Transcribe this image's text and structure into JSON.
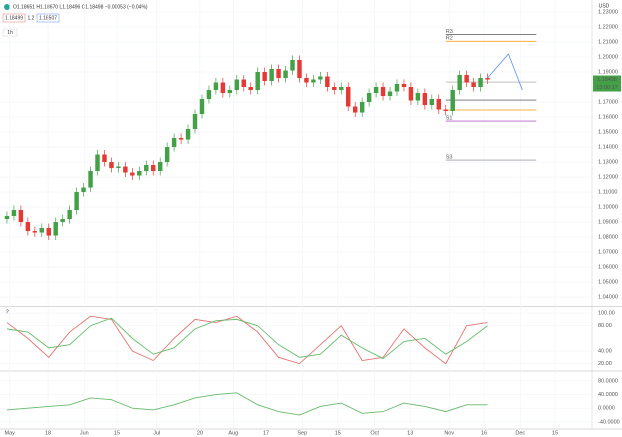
{
  "header": {
    "symbol_info": "O1.18651 H1.18670 L1.18496 C1.18498 −0.00053 (−0.04%)",
    "bid": "1.18499",
    "spread": "1.2",
    "ask": "1.18507",
    "interval": "1h",
    "currency": "USD",
    "last_price": "1.18498",
    "countdown": "13:00:17",
    "pane2_label": "2"
  },
  "chart_data": [
    {
      "type": "candlestick",
      "x": [
        0,
        1,
        2,
        3,
        4,
        5,
        6,
        7,
        8,
        9,
        10,
        11,
        12,
        13,
        14,
        15,
        16,
        17,
        18,
        19,
        20,
        21,
        22,
        23,
        24,
        25,
        26,
        27,
        28,
        29,
        30,
        31,
        32,
        33,
        34,
        35,
        36,
        37,
        38,
        39,
        40,
        41,
        42,
        43,
        44,
        45,
        46,
        47,
        48,
        49,
        50,
        51,
        52,
        53,
        54,
        55,
        56,
        57,
        58,
        59,
        60,
        61,
        62,
        63,
        64,
        65,
        66,
        67,
        68,
        69
      ],
      "open": [
        1.092,
        1.094,
        1.098,
        1.09,
        1.084,
        1.083,
        1.086,
        1.081,
        1.09,
        1.092,
        1.098,
        1.11,
        1.113,
        1.124,
        1.135,
        1.13,
        1.126,
        1.127,
        1.123,
        1.121,
        1.124,
        1.128,
        1.124,
        1.13,
        1.14,
        1.146,
        1.145,
        1.152,
        1.162,
        1.172,
        1.178,
        1.183,
        1.176,
        1.178,
        1.185,
        1.18,
        1.178,
        1.19,
        1.184,
        1.192,
        1.186,
        1.191,
        1.198,
        1.186,
        1.183,
        1.185,
        1.187,
        1.18,
        1.178,
        1.18,
        1.167,
        1.163,
        1.17,
        1.176,
        1.18,
        1.174,
        1.177,
        1.182,
        1.18,
        1.171,
        1.176,
        1.168,
        1.172,
        1.165,
        1.164,
        1.178,
        1.188,
        1.183,
        1.18,
        1.186
      ],
      "high": [
        1.097,
        1.101,
        1.101,
        1.093,
        1.087,
        1.089,
        1.089,
        1.093,
        1.095,
        1.101,
        1.113,
        1.116,
        1.127,
        1.138,
        1.138,
        1.133,
        1.13,
        1.13,
        1.126,
        1.127,
        1.131,
        1.131,
        1.133,
        1.143,
        1.149,
        1.149,
        1.155,
        1.165,
        1.175,
        1.181,
        1.186,
        1.186,
        1.181,
        1.188,
        1.188,
        1.183,
        1.193,
        1.193,
        1.195,
        1.195,
        1.194,
        1.201,
        1.201,
        1.189,
        1.188,
        1.19,
        1.19,
        1.183,
        1.183,
        1.183,
        1.17,
        1.173,
        1.179,
        1.183,
        1.183,
        1.18,
        1.185,
        1.185,
        1.183,
        1.179,
        1.179,
        1.175,
        1.175,
        1.168,
        1.181,
        1.191,
        1.191,
        1.186,
        1.189,
        1.189
      ],
      "low": [
        1.089,
        1.091,
        1.087,
        1.081,
        1.08,
        1.08,
        1.078,
        1.078,
        1.087,
        1.089,
        1.095,
        1.107,
        1.11,
        1.121,
        1.127,
        1.123,
        1.123,
        1.12,
        1.118,
        1.118,
        1.121,
        1.121,
        1.121,
        1.127,
        1.137,
        1.142,
        1.142,
        1.149,
        1.159,
        1.169,
        1.175,
        1.173,
        1.173,
        1.175,
        1.177,
        1.175,
        1.175,
        1.181,
        1.181,
        1.183,
        1.183,
        1.188,
        1.183,
        1.18,
        1.18,
        1.182,
        1.177,
        1.175,
        1.175,
        1.164,
        1.16,
        1.16,
        1.167,
        1.173,
        1.171,
        1.171,
        1.174,
        1.177,
        1.168,
        1.168,
        1.165,
        1.165,
        1.162,
        1.161,
        1.161,
        1.175,
        1.18,
        1.177,
        1.177,
        1.182
      ],
      "close": [
        1.094,
        1.098,
        1.09,
        1.084,
        1.083,
        1.086,
        1.081,
        1.09,
        1.092,
        1.098,
        1.11,
        1.113,
        1.124,
        1.135,
        1.13,
        1.126,
        1.127,
        1.123,
        1.121,
        1.124,
        1.128,
        1.124,
        1.13,
        1.14,
        1.146,
        1.145,
        1.152,
        1.162,
        1.172,
        1.178,
        1.183,
        1.176,
        1.178,
        1.185,
        1.18,
        1.178,
        1.19,
        1.184,
        1.192,
        1.186,
        1.191,
        1.198,
        1.186,
        1.183,
        1.185,
        1.187,
        1.18,
        1.178,
        1.18,
        1.167,
        1.163,
        1.17,
        1.176,
        1.18,
        1.174,
        1.177,
        1.182,
        1.18,
        1.171,
        1.176,
        1.168,
        1.172,
        1.165,
        1.164,
        1.178,
        1.188,
        1.183,
        1.18,
        1.186,
        1.185
      ],
      "up_color": "#43a047",
      "down_color": "#e53935",
      "xlim": [
        -1,
        84
      ],
      "xticks": [
        {
          "value": 0.4,
          "label": "May"
        },
        {
          "value": 5.9,
          "label": "18"
        },
        {
          "value": 11.1,
          "label": "Jun"
        },
        {
          "value": 15.8,
          "label": "15"
        },
        {
          "value": 21.5,
          "label": "Jul"
        },
        {
          "value": 27.7,
          "label": "20"
        },
        {
          "value": 32.5,
          "label": "Aug"
        },
        {
          "value": 37.2,
          "label": "17"
        },
        {
          "value": 42.4,
          "label": "Sep"
        },
        {
          "value": 47.5,
          "label": "15"
        },
        {
          "value": 52.8,
          "label": "Oct"
        },
        {
          "value": 57.9,
          "label": "13"
        },
        {
          "value": 63.5,
          "label": "Nov"
        },
        {
          "value": 68.5,
          "label": "16"
        },
        {
          "value": 73.7,
          "label": "Dec"
        },
        {
          "value": 78.7,
          "label": "15"
        }
      ],
      "ylim": [
        1.0347,
        1.238
      ],
      "yticks": [
        {
          "value": 1.04,
          "label": "1.04000"
        },
        {
          "value": 1.05,
          "label": "1.05000"
        },
        {
          "value": 1.06,
          "label": "1.06000"
        },
        {
          "value": 1.07,
          "label": "1.07000"
        },
        {
          "value": 1.08,
          "label": "1.08000"
        },
        {
          "value": 1.09,
          "label": "1.09000"
        },
        {
          "value": 1.1,
          "label": "1.10000"
        },
        {
          "value": 1.11,
          "label": "1.11000"
        },
        {
          "value": 1.12,
          "label": "1.12000"
        },
        {
          "value": 1.13,
          "label": "1.13000"
        },
        {
          "value": 1.14,
          "label": "1.14000"
        },
        {
          "value": 1.15,
          "label": "1.15000"
        },
        {
          "value": 1.16,
          "label": "1.16000"
        },
        {
          "value": 1.17,
          "label": "1.17000"
        },
        {
          "value": 1.19,
          "label": "1.19000"
        },
        {
          "value": 1.2,
          "label": "1.20000"
        },
        {
          "value": 1.21,
          "label": "1.21000"
        },
        {
          "value": 1.22,
          "label": "1.22000"
        },
        {
          "value": 1.23,
          "label": "1.23000"
        }
      ],
      "grid": true,
      "levels": [
        {
          "label": "R3",
          "value": 1.215,
          "color": "#555555"
        },
        {
          "label": "R2",
          "value": 1.2105,
          "color": "#ff9800"
        },
        {
          "label": null,
          "value": 1.1833,
          "color": "#9e9e9e"
        },
        {
          "label": null,
          "value": 1.1713,
          "color": "#333333"
        },
        {
          "label": null,
          "value": 1.1647,
          "color": "#ff9800"
        },
        {
          "label": "S1",
          "value": 1.1573,
          "color": "#9c27b0"
        },
        {
          "label": "S3",
          "value": 1.1313,
          "color": "#787b86"
        }
      ],
      "level_span": [
        63,
        76
      ],
      "projection": {
        "x": [
          69,
          72,
          74
        ],
        "values": [
          1.186,
          1.202,
          1.178
        ],
        "color": "#5b8def"
      }
    },
    {
      "type": "line",
      "x": [
        0,
        3,
        6,
        9,
        12,
        15,
        18,
        21,
        24,
        27,
        30,
        33,
        36,
        39,
        42,
        45,
        48,
        51,
        54,
        57,
        60,
        63,
        66,
        69
      ],
      "series": [
        {
          "color": "#e57373",
          "values": [
            85,
            60,
            30,
            70,
            95,
            90,
            40,
            25,
            60,
            90,
            85,
            95,
            70,
            30,
            20,
            50,
            80,
            25,
            30,
            75,
            45,
            20,
            80,
            85
          ]
        },
        {
          "color": "#66bb6a",
          "values": [
            75,
            70,
            45,
            50,
            80,
            92,
            60,
            35,
            45,
            75,
            88,
            90,
            80,
            50,
            30,
            35,
            65,
            45,
            28,
            55,
            60,
            35,
            55,
            80
          ]
        }
      ],
      "xlim": [
        -1,
        84
      ],
      "ylim": [
        10,
        108
      ],
      "yticks": [
        {
          "value": 100,
          "label": "100.00"
        },
        {
          "value": 80,
          "label": "80.00"
        },
        {
          "value": 40,
          "label": "40.00"
        },
        {
          "value": 20,
          "label": "20.00"
        }
      ],
      "grid": true
    },
    {
      "type": "line",
      "x": [
        0,
        3,
        6,
        9,
        12,
        15,
        18,
        21,
        24,
        27,
        30,
        33,
        36,
        39,
        42,
        45,
        48,
        51,
        54,
        57,
        60,
        63,
        66,
        69
      ],
      "series": [
        {
          "color": "#66bb6a",
          "values": [
            -5,
            0,
            5,
            10,
            30,
            25,
            0,
            -5,
            10,
            30,
            40,
            45,
            10,
            -10,
            -20,
            5,
            15,
            -15,
            -10,
            15,
            5,
            -10,
            10,
            10
          ]
        }
      ],
      "xlim": [
        -1,
        84
      ],
      "ylim": [
        -58,
        106
      ],
      "yticks": [
        {
          "value": 80,
          "label": "80.0000"
        },
        {
          "value": 40,
          "label": "40.0000"
        },
        {
          "value": 0,
          "label": "0.0000"
        },
        {
          "value": -40,
          "label": "-40.0000"
        }
      ],
      "grid": true
    }
  ]
}
